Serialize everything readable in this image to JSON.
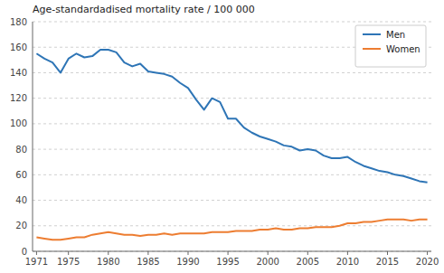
{
  "chart_data": {
    "type": "line",
    "title": "Age-standardadised mortality rate / 100 000",
    "x": [
      1971,
      1972,
      1973,
      1974,
      1975,
      1976,
      1977,
      1978,
      1979,
      1980,
      1981,
      1982,
      1983,
      1984,
      1985,
      1986,
      1987,
      1988,
      1989,
      1990,
      1991,
      1992,
      1993,
      1994,
      1995,
      1996,
      1997,
      1998,
      1999,
      2000,
      2001,
      2002,
      2003,
      2004,
      2005,
      2006,
      2007,
      2008,
      2009,
      2010,
      2011,
      2012,
      2013,
      2014,
      2015,
      2016,
      2017,
      2018,
      2019,
      2020
    ],
    "series": [
      {
        "name": "Men",
        "color": "#2E75B6",
        "values": [
          155,
          151,
          148,
          140,
          151,
          155,
          152,
          153,
          158,
          158,
          156,
          148,
          145,
          147,
          141,
          140,
          139,
          137,
          132,
          128,
          119,
          111,
          120,
          117,
          104,
          104,
          97,
          93,
          90,
          88,
          86,
          83,
          82,
          79,
          80,
          79,
          75,
          73,
          73,
          74,
          70,
          67,
          65,
          63,
          62,
          60,
          59,
          57,
          55,
          54
        ]
      },
      {
        "name": "Women",
        "color": "#ED7D31",
        "values": [
          11,
          10,
          9,
          9,
          10,
          11,
          11,
          13,
          14,
          15,
          14,
          13,
          13,
          12,
          13,
          13,
          14,
          13,
          14,
          14,
          14,
          14,
          15,
          15,
          15,
          16,
          16,
          16,
          17,
          17,
          18,
          17,
          17,
          18,
          18,
          19,
          19,
          19,
          20,
          22,
          22,
          23,
          23,
          24,
          25,
          25,
          25,
          24,
          25,
          25
        ]
      }
    ],
    "xlim": [
      1970.5,
      2020.5
    ],
    "xticks": [
      1971,
      1975,
      1980,
      1985,
      1990,
      1995,
      2000,
      2005,
      2010,
      2015,
      2020
    ],
    "ylim": [
      0,
      180
    ],
    "yticks": [
      0,
      20,
      40,
      60,
      80,
      100,
      120,
      140,
      160,
      180
    ],
    "grid": true,
    "legend": "upper right"
  }
}
